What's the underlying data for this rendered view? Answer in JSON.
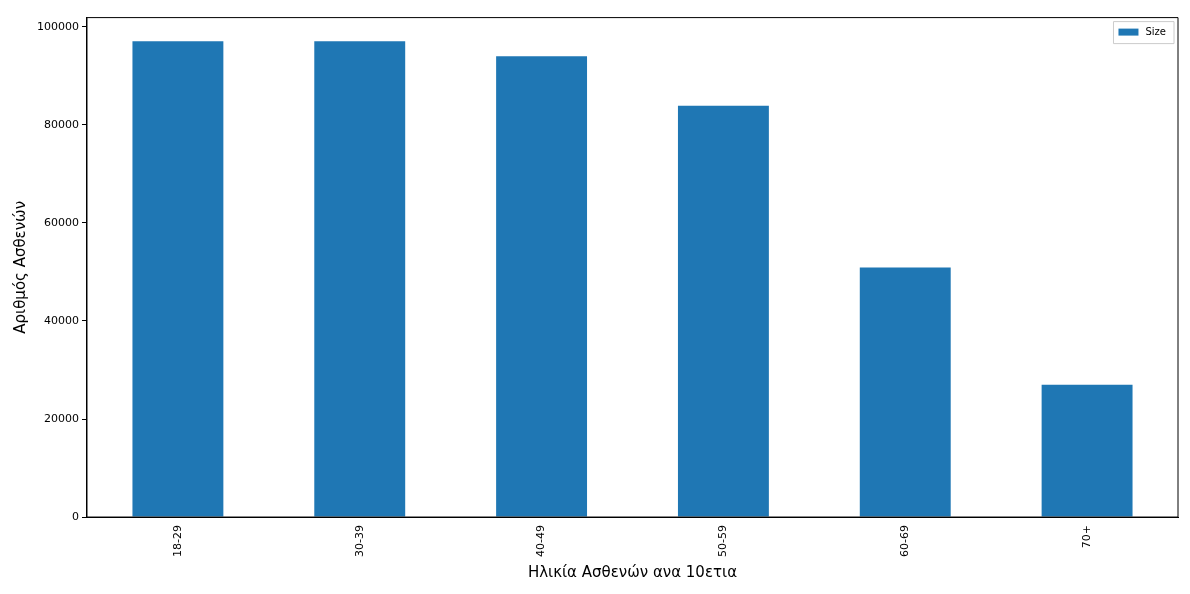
{
  "chart_data": {
    "type": "bar",
    "xlabel": "Ηλικία Ασθενών ανα 10ετια",
    "ylabel": "Αριθμός Ασθενών",
    "categories": [
      "18-29",
      "30-39",
      "40-49",
      "50-59",
      "60-69",
      "70+"
    ],
    "series": [
      {
        "name": "Size",
        "color": "#1f77b4",
        "values": [
          97100,
          97100,
          94000,
          83900,
          50900,
          27000
        ]
      }
    ],
    "ylim": [
      0,
      101900
    ],
    "yticks": [
      0,
      20000,
      40000,
      60000,
      80000,
      100000
    ],
    "grid": false,
    "legend": "top right"
  }
}
